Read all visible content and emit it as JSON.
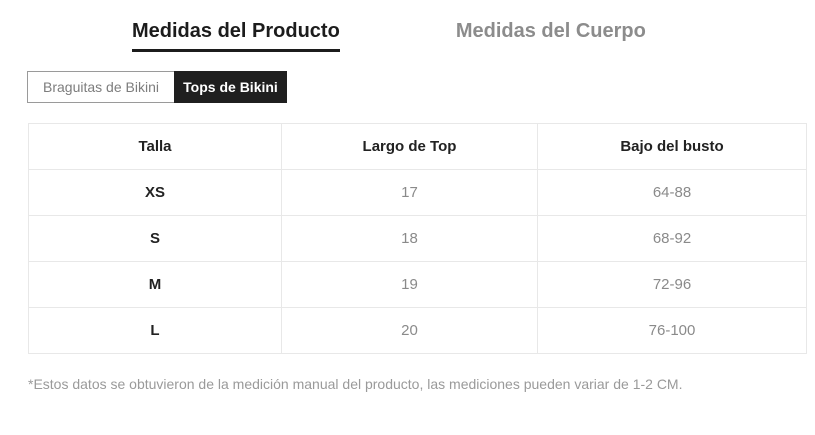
{
  "tabs": {
    "product": {
      "label": "Medidas del Producto",
      "active": true
    },
    "body": {
      "label": "Medidas del Cuerpo",
      "active": false
    }
  },
  "toggle": {
    "bottoms": {
      "label": "Braguitas de Bikini",
      "active": false
    },
    "tops": {
      "label": "Tops de Bikini",
      "active": true
    }
  },
  "table": {
    "headers": [
      "Talla",
      "Largo de Top",
      "Bajo del busto"
    ],
    "rows": [
      {
        "size": "XS",
        "largo": "17",
        "busto": "64-88"
      },
      {
        "size": "S",
        "largo": "18",
        "busto": "68-92"
      },
      {
        "size": "M",
        "largo": "19",
        "busto": "72-96"
      },
      {
        "size": "L",
        "largo": "20",
        "busto": "76-100"
      }
    ]
  },
  "footnote": "*Estos datos se obtuvieron de la medición manual del producto, las mediciones pueden variar de 1-2 CM.",
  "colors": {
    "active_text": "#1c1c1c",
    "inactive_text": "#8c8c8c",
    "active_button_bg": "#1f1f1f",
    "table_border": "#e8e8e8",
    "value_text": "#8a8a8a"
  }
}
